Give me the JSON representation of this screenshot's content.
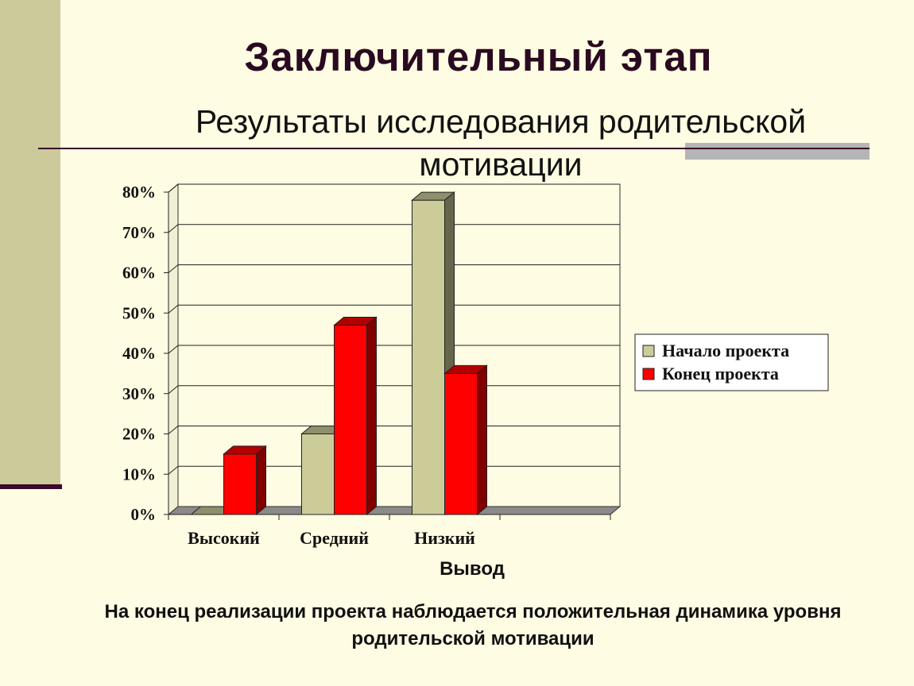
{
  "slide": {
    "title": "Заключительный этап",
    "subtitle": "Результаты исследования родительской мотивации",
    "conclusion_title": "Вывод",
    "conclusion_text": "На конец реализации проекта наблюдается положительная динамика уровня родительской мотивации"
  },
  "colors": {
    "background": "#FEFCE2",
    "band": "#CCC99A",
    "accent_dark": "#3A0A2A"
  },
  "chart_data": {
    "type": "bar",
    "style": "3d-clustered-column",
    "categories": [
      "Высокий",
      "Средний",
      "Низкий"
    ],
    "series": [
      {
        "name": "Начало проекта",
        "values": [
          0,
          20,
          78
        ],
        "color": "#CCCC99"
      },
      {
        "name": "Конец проекта",
        "values": [
          15,
          47,
          35
        ],
        "color": "#FF0000"
      }
    ],
    "y_ticks": [
      "0%",
      "10%",
      "20%",
      "30%",
      "40%",
      "50%",
      "60%",
      "70%",
      "80%"
    ],
    "ylim": [
      0,
      80
    ],
    "y_unit": "%",
    "grid": true,
    "legend": "right"
  }
}
